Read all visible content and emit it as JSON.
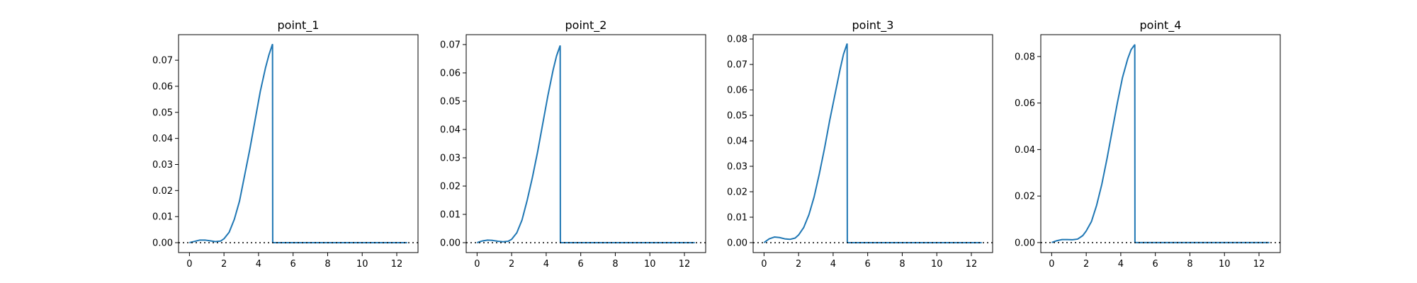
{
  "chart_data": [
    {
      "type": "line",
      "title": "point_1",
      "xlabel": "",
      "ylabel": "",
      "xlim": [
        -0.63,
        13.23
      ],
      "ylim": [
        -0.0038,
        0.0798
      ],
      "xticks": [
        0,
        2,
        4,
        6,
        8,
        10,
        12
      ],
      "xtick_labels": [
        "0",
        "2",
        "4",
        "6",
        "8",
        "10",
        "12"
      ],
      "yticks": [
        0.0,
        0.01,
        0.02,
        0.03,
        0.04,
        0.05,
        0.06,
        0.07
      ],
      "ytick_labels": [
        "0.00",
        "0.01",
        "0.02",
        "0.03",
        "0.04",
        "0.05",
        "0.06",
        "0.07"
      ],
      "reference_line": {
        "y": 0,
        "style": "dotted"
      },
      "series": [
        {
          "x": [
            0,
            0.3,
            0.6,
            0.9,
            1.2,
            1.5,
            1.8,
            2.0,
            2.3,
            2.6,
            2.9,
            3.2,
            3.5,
            3.8,
            4.1,
            4.4,
            4.6,
            4.8,
            4.81,
            4.82,
            6,
            8,
            10,
            12.6
          ],
          "y": [
            0,
            0.0005,
            0.001,
            0.001,
            0.0007,
            0.0004,
            0.0006,
            0.0015,
            0.004,
            0.009,
            0.016,
            0.026,
            0.036,
            0.047,
            0.058,
            0.067,
            0.072,
            0.076,
            0.076,
            0,
            0,
            0,
            0,
            0
          ]
        }
      ]
    },
    {
      "type": "line",
      "title": "point_2",
      "xlabel": "",
      "ylabel": "",
      "xlim": [
        -0.63,
        13.23
      ],
      "ylim": [
        -0.0035,
        0.0735
      ],
      "xticks": [
        0,
        2,
        4,
        6,
        8,
        10,
        12
      ],
      "xtick_labels": [
        "0",
        "2",
        "4",
        "6",
        "8",
        "10",
        "12"
      ],
      "yticks": [
        0.0,
        0.01,
        0.02,
        0.03,
        0.04,
        0.05,
        0.06,
        0.07
      ],
      "ytick_labels": [
        "0.00",
        "0.01",
        "0.02",
        "0.03",
        "0.04",
        "0.05",
        "0.06",
        "0.07"
      ],
      "reference_line": {
        "y": 0,
        "style": "dotted"
      },
      "series": [
        {
          "x": [
            0,
            0.3,
            0.6,
            0.9,
            1.2,
            1.5,
            1.8,
            2.0,
            2.3,
            2.6,
            2.9,
            3.2,
            3.5,
            3.8,
            4.1,
            4.4,
            4.6,
            4.8,
            4.81,
            4.82,
            6,
            8,
            10,
            12.6
          ],
          "y": [
            0,
            0.0006,
            0.0009,
            0.0008,
            0.0005,
            0.0003,
            0.0005,
            0.0012,
            0.0035,
            0.008,
            0.015,
            0.023,
            0.032,
            0.042,
            0.052,
            0.061,
            0.066,
            0.0695,
            0.0695,
            0,
            0,
            0,
            0,
            0
          ]
        }
      ]
    },
    {
      "type": "line",
      "title": "point_3",
      "xlabel": "",
      "ylabel": "",
      "xlim": [
        -0.63,
        13.23
      ],
      "ylim": [
        -0.0039,
        0.0817
      ],
      "xticks": [
        0,
        2,
        4,
        6,
        8,
        10,
        12
      ],
      "xtick_labels": [
        "0",
        "2",
        "4",
        "6",
        "8",
        "10",
        "12"
      ],
      "yticks": [
        0.0,
        0.01,
        0.02,
        0.03,
        0.04,
        0.05,
        0.06,
        0.07,
        0.08
      ],
      "ytick_labels": [
        "0.00",
        "0.01",
        "0.02",
        "0.03",
        "0.04",
        "0.05",
        "0.06",
        "0.07",
        "0.08"
      ],
      "reference_line": {
        "y": 0,
        "style": "dotted"
      },
      "series": [
        {
          "x": [
            0,
            0.3,
            0.6,
            0.9,
            1.2,
            1.5,
            1.8,
            2.0,
            2.3,
            2.6,
            2.9,
            3.2,
            3.5,
            3.8,
            4.1,
            4.4,
            4.6,
            4.8,
            4.81,
            4.82,
            6,
            8,
            10,
            12.6
          ],
          "y": [
            0,
            0.0015,
            0.0022,
            0.002,
            0.0015,
            0.0013,
            0.0018,
            0.003,
            0.006,
            0.011,
            0.018,
            0.027,
            0.037,
            0.048,
            0.058,
            0.068,
            0.074,
            0.078,
            0.078,
            0,
            0,
            0,
            0,
            0
          ]
        }
      ]
    },
    {
      "type": "line",
      "title": "point_4",
      "xlabel": "",
      "ylabel": "",
      "xlim": [
        -0.63,
        13.23
      ],
      "ylim": [
        -0.0043,
        0.0894
      ],
      "xticks": [
        0,
        2,
        4,
        6,
        8,
        10,
        12
      ],
      "xtick_labels": [
        "0",
        "2",
        "4",
        "6",
        "8",
        "10",
        "12"
      ],
      "yticks": [
        0.0,
        0.02,
        0.04,
        0.06,
        0.08
      ],
      "ytick_labels": [
        "0.00",
        "0.02",
        "0.04",
        "0.06",
        "0.08"
      ],
      "reference_line": {
        "y": 0,
        "style": "dotted"
      },
      "series": [
        {
          "x": [
            0,
            0.3,
            0.6,
            0.9,
            1.2,
            1.5,
            1.8,
            2.0,
            2.3,
            2.6,
            2.9,
            3.2,
            3.5,
            3.8,
            4.1,
            4.4,
            4.6,
            4.8,
            4.81,
            4.82,
            6,
            8,
            10,
            12.6
          ],
          "y": [
            0,
            0.0008,
            0.0013,
            0.0013,
            0.0012,
            0.0015,
            0.003,
            0.005,
            0.009,
            0.016,
            0.025,
            0.036,
            0.048,
            0.06,
            0.071,
            0.079,
            0.083,
            0.085,
            0.085,
            0,
            0,
            0,
            0,
            0
          ]
        }
      ]
    }
  ]
}
